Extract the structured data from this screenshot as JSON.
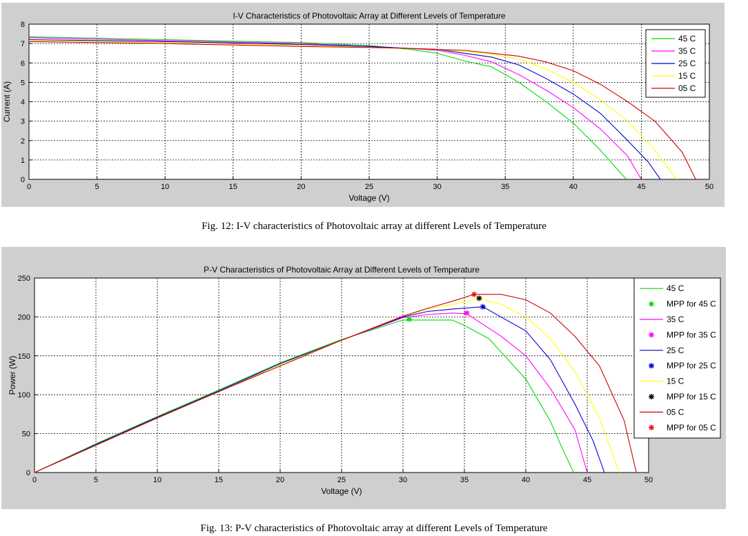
{
  "figures": {
    "iv_caption": "Fig. 12: I-V characteristics of Photovoltaic array at different Levels of Temperature",
    "pv_caption": "Fig. 13: P-V characteristics of Photovoltaic array at different Levels of Temperature"
  },
  "chart_data": [
    {
      "type": "line",
      "title": "I-V Characteristics of Photovoltaic Array at Different Levels of Temperature",
      "xlabel": "Voltage (V)",
      "ylabel": "Current (A)",
      "xlim": [
        0,
        50
      ],
      "ylim": [
        0,
        8
      ],
      "xticks": [
        "0",
        "5",
        "10",
        "15",
        "20",
        "25",
        "30",
        "35",
        "40",
        "45",
        "50"
      ],
      "yticks": [
        "0",
        "1",
        "2",
        "3",
        "4",
        "5",
        "6",
        "7",
        "8"
      ],
      "grid": true,
      "legend_position": "top-right",
      "series": [
        {
          "name": "45 C",
          "color": "#00dd00",
          "x": [
            0,
            10,
            20,
            25,
            28,
            30,
            32,
            34,
            35,
            36,
            38,
            40,
            42,
            43,
            43.9
          ],
          "y": [
            7.35,
            7.2,
            7.05,
            6.9,
            6.7,
            6.5,
            6.1,
            5.8,
            5.4,
            5.0,
            4.0,
            2.9,
            1.5,
            0.7,
            0
          ]
        },
        {
          "name": "35 C",
          "color": "#ff00ff",
          "x": [
            0,
            10,
            20,
            25,
            28,
            30,
            32,
            34,
            36,
            38,
            40,
            42,
            44,
            45
          ],
          "y": [
            7.3,
            7.15,
            7.0,
            6.85,
            6.75,
            6.65,
            6.4,
            6.05,
            5.4,
            4.6,
            3.7,
            2.6,
            1.2,
            0
          ]
        },
        {
          "name": "25 C",
          "color": "#0000cc",
          "x": [
            0,
            10,
            20,
            25,
            28,
            30,
            32,
            34,
            36,
            38,
            40,
            42,
            44,
            45.5,
            46.4
          ],
          "y": [
            7.2,
            7.1,
            6.95,
            6.85,
            6.75,
            6.7,
            6.5,
            6.3,
            5.9,
            5.2,
            4.4,
            3.4,
            2.0,
            0.9,
            0
          ]
        },
        {
          "name": "15 C",
          "color": "#ffff00",
          "x": [
            0,
            10,
            20,
            25,
            28,
            30,
            32,
            34,
            36,
            38,
            40,
            42,
            44,
            46,
            47.6
          ],
          "y": [
            7.15,
            7.05,
            6.9,
            6.8,
            6.75,
            6.7,
            6.6,
            6.45,
            6.2,
            5.7,
            5.0,
            4.1,
            3.0,
            1.5,
            0
          ]
        },
        {
          "name": "05 C",
          "color": "#cc0000",
          "x": [
            0,
            10,
            20,
            25,
            28,
            30,
            32,
            34,
            36,
            38,
            40,
            42,
            44,
            46,
            48,
            49
          ],
          "y": [
            7.1,
            7.0,
            6.85,
            6.8,
            6.75,
            6.7,
            6.65,
            6.5,
            6.35,
            6.05,
            5.6,
            4.9,
            4.0,
            3.0,
            1.4,
            0
          ]
        }
      ]
    },
    {
      "type": "line",
      "title": "P-V Characteristics of Photovoltaic Array at Different Levels of Temperature",
      "xlabel": "Voltage (V)",
      "ylabel": "Power (W)",
      "xlim": [
        0,
        50
      ],
      "ylim": [
        0,
        250
      ],
      "xticks": [
        "0",
        "5",
        "10",
        "15",
        "20",
        "25",
        "30",
        "35",
        "40",
        "45",
        "50"
      ],
      "yticks": [
        "0",
        "50",
        "100",
        "150",
        "200",
        "250"
      ],
      "grid": true,
      "legend_position": "top-right",
      "series": [
        {
          "name": "45 C",
          "color": "#00dd00",
          "x": [
            0,
            5,
            10,
            15,
            20,
            25,
            28,
            30,
            32,
            34,
            35,
            37,
            40,
            42,
            43,
            43.9
          ],
          "y": [
            0,
            37,
            72,
            106,
            141,
            171,
            186,
            196,
            196,
            196,
            189,
            172,
            120,
            66,
            30,
            0
          ]
        },
        {
          "name": "MPP for 45 C",
          "color": "#00dd00",
          "marker": "star",
          "x": [
            30.5
          ],
          "y": [
            197
          ]
        },
        {
          "name": "35 C",
          "color": "#ff00ff",
          "x": [
            0,
            5,
            10,
            15,
            20,
            25,
            30,
            32,
            34,
            35.2,
            38,
            40,
            42,
            44,
            45
          ],
          "y": [
            0,
            36,
            71,
            104,
            140,
            170,
            199,
            203,
            205,
            204,
            175,
            150,
            108,
            55,
            0
          ]
        },
        {
          "name": "MPP for 35 C",
          "color": "#ff00ff",
          "marker": "star",
          "x": [
            35.2
          ],
          "y": [
            205
          ]
        },
        {
          "name": "25 C",
          "color": "#0000cc",
          "x": [
            0,
            5,
            10,
            15,
            20,
            25,
            30,
            32,
            34,
            36.5,
            40,
            42,
            44,
            45.5,
            46.4
          ],
          "y": [
            0,
            36,
            71,
            105,
            140,
            170,
            200,
            207,
            210,
            213,
            182,
            145,
            88,
            40,
            0
          ]
        },
        {
          "name": "MPP for 25 C",
          "color": "#0000cc",
          "marker": "star",
          "x": [
            36.5
          ],
          "y": [
            213
          ]
        },
        {
          "name": "15 C",
          "color": "#ffff00",
          "x": [
            0,
            5,
            10,
            15,
            20,
            25,
            30,
            32,
            34,
            36.2,
            38,
            40,
            42,
            44,
            46,
            47.6
          ],
          "y": [
            0,
            35,
            70,
            104,
            138,
            170,
            201,
            210,
            216,
            224,
            216,
            200,
            172,
            130,
            70,
            0
          ]
        },
        {
          "name": "MPP for 15 C",
          "color": "#000000",
          "marker": "star",
          "x": [
            36.2
          ],
          "y": [
            224
          ]
        },
        {
          "name": "05 C",
          "color": "#cc0000",
          "x": [
            0,
            5,
            10,
            15,
            20,
            25,
            30,
            32,
            34,
            35.8,
            38,
            40,
            42,
            44,
            46,
            48,
            49
          ],
          "y": [
            0,
            35,
            70,
            104,
            137,
            170,
            201,
            211,
            220,
            229,
            229,
            222,
            205,
            175,
            137,
            67,
            0
          ]
        },
        {
          "name": "MPP for 05 C",
          "color": "#ff0000",
          "marker": "star",
          "x": [
            35.8
          ],
          "y": [
            229
          ]
        }
      ]
    }
  ]
}
